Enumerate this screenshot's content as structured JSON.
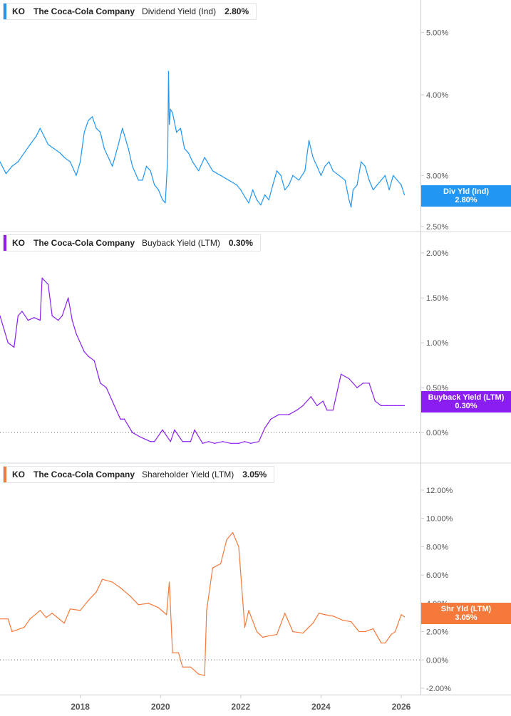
{
  "chart_data": [
    {
      "type": "line",
      "ticker": "KO",
      "company": "The Coca-Cola Company",
      "metric": "Dividend Yield (Ind)",
      "current_value": "2.80%",
      "badge": [
        "Div Yld (Ind)",
        "2.80%"
      ],
      "color": "#2196f3",
      "scale": "log",
      "ylim": [
        2.5,
        5.2
      ],
      "yticks": [
        {
          "v": 5.0,
          "label": "5.00%"
        },
        {
          "v": 4.0,
          "label": "4.00%"
        },
        {
          "v": 3.0,
          "label": "3.00%"
        },
        {
          "v": 2.5,
          "label": "2.50%"
        }
      ],
      "x": [
        2016.0,
        2016.15,
        2016.3,
        2016.45,
        2016.6,
        2016.75,
        2016.9,
        2017.0,
        2017.1,
        2017.2,
        2017.35,
        2017.5,
        2017.6,
        2017.75,
        2017.9,
        2018.0,
        2018.1,
        2018.2,
        2018.3,
        2018.4,
        2018.5,
        2018.6,
        2018.7,
        2018.8,
        2018.95,
        2019.05,
        2019.2,
        2019.3,
        2019.45,
        2019.55,
        2019.65,
        2019.75,
        2019.85,
        2019.95,
        2020.05,
        2020.12,
        2020.18,
        2020.2,
        2020.22,
        2020.25,
        2020.3,
        2020.4,
        2020.5,
        2020.6,
        2020.7,
        2020.8,
        2020.95,
        2021.1,
        2021.3,
        2021.5,
        2021.7,
        2021.9,
        2022.0,
        2022.1,
        2022.2,
        2022.3,
        2022.4,
        2022.5,
        2022.6,
        2022.7,
        2022.8,
        2022.9,
        2023.0,
        2023.1,
        2023.2,
        2023.3,
        2023.45,
        2023.6,
        2023.7,
        2023.8,
        2023.9,
        2024.0,
        2024.1,
        2024.2,
        2024.3,
        2024.45,
        2024.6,
        2024.7,
        2024.75,
        2024.8,
        2024.9,
        2025.0,
        2025.1,
        2025.2,
        2025.3,
        2025.4,
        2025.5,
        2025.6,
        2025.7,
        2025.8,
        2025.9,
        2026.0,
        2026.08
      ],
      "values": [
        3.15,
        3.02,
        3.1,
        3.15,
        3.25,
        3.35,
        3.45,
        3.55,
        3.45,
        3.35,
        3.3,
        3.25,
        3.2,
        3.15,
        3.0,
        3.15,
        3.5,
        3.65,
        3.7,
        3.55,
        3.5,
        3.3,
        3.2,
        3.1,
        3.35,
        3.55,
        3.3,
        3.1,
        2.95,
        2.95,
        3.1,
        3.05,
        2.9,
        2.85,
        2.75,
        2.72,
        3.2,
        4.35,
        3.6,
        3.8,
        3.75,
        3.5,
        3.55,
        3.3,
        3.25,
        3.15,
        3.05,
        3.2,
        3.05,
        3.0,
        2.95,
        2.9,
        2.85,
        2.78,
        2.72,
        2.85,
        2.75,
        2.7,
        2.8,
        2.75,
        2.9,
        3.05,
        3.0,
        2.85,
        2.9,
        3.0,
        2.95,
        3.05,
        3.4,
        3.2,
        3.1,
        3.0,
        3.1,
        3.15,
        3.05,
        3.0,
        2.95,
        2.75,
        2.68,
        2.85,
        2.9,
        3.15,
        3.1,
        2.95,
        2.85,
        2.9,
        2.95,
        3.0,
        2.85,
        3.0,
        2.95,
        2.9,
        2.8
      ]
    },
    {
      "type": "line",
      "ticker": "KO",
      "company": "The Coca-Cola Company",
      "metric": "Buyback Yield (LTM)",
      "current_value": "0.30%",
      "badge": [
        "Buyback Yield (LTM)",
        "0.30%"
      ],
      "color": "#8a1ef0",
      "scale": "linear",
      "ylim": [
        -0.3,
        2.0
      ],
      "yticks": [
        {
          "v": 2.0,
          "label": "2.00%"
        },
        {
          "v": 1.5,
          "label": "1.50%"
        },
        {
          "v": 1.0,
          "label": "1.00%"
        },
        {
          "v": 0.5,
          "label": "0.50%"
        },
        {
          "v": 0.0,
          "label": "0.00%"
        }
      ],
      "zero_line": true,
      "x": [
        2016.0,
        2016.1,
        2016.2,
        2016.35,
        2016.45,
        2016.55,
        2016.7,
        2016.85,
        2017.0,
        2017.05,
        2017.2,
        2017.3,
        2017.45,
        2017.55,
        2017.7,
        2017.8,
        2017.9,
        2018.1,
        2018.2,
        2018.35,
        2018.5,
        2018.65,
        2018.85,
        2019.0,
        2019.1,
        2019.3,
        2019.5,
        2019.75,
        2019.85,
        2020.05,
        2020.25,
        2020.35,
        2020.55,
        2020.75,
        2020.85,
        2021.05,
        2021.2,
        2021.35,
        2021.55,
        2021.75,
        2021.95,
        2022.1,
        2022.25,
        2022.45,
        2022.6,
        2022.75,
        2022.95,
        2023.2,
        2023.4,
        2023.55,
        2023.75,
        2023.9,
        2024.05,
        2024.15,
        2024.3,
        2024.5,
        2024.7,
        2024.9,
        2025.05,
        2025.2,
        2025.35,
        2025.5,
        2025.65,
        2025.85,
        2026.0,
        2026.08
      ],
      "values": [
        1.3,
        1.15,
        1.0,
        0.95,
        1.3,
        1.35,
        1.25,
        1.28,
        1.25,
        1.72,
        1.65,
        1.3,
        1.25,
        1.3,
        1.5,
        1.25,
        1.1,
        0.9,
        0.85,
        0.8,
        0.55,
        0.5,
        0.3,
        0.15,
        0.15,
        0.0,
        -0.05,
        -0.1,
        -0.1,
        0.03,
        -0.1,
        0.03,
        -0.1,
        -0.1,
        0.03,
        -0.12,
        -0.1,
        -0.12,
        -0.1,
        -0.12,
        -0.12,
        -0.1,
        -0.12,
        -0.1,
        0.05,
        0.15,
        0.2,
        0.2,
        0.25,
        0.3,
        0.4,
        0.3,
        0.35,
        0.25,
        0.25,
        0.65,
        0.6,
        0.5,
        0.55,
        0.55,
        0.35,
        0.3,
        0.3,
        0.3,
        0.3,
        0.3
      ]
    },
    {
      "type": "line",
      "ticker": "KO",
      "company": "The Coca-Cola Company",
      "metric": "Shareholder Yield (LTM)",
      "current_value": "3.05%",
      "badge": [
        "Shr Yld (LTM)",
        "3.05%"
      ],
      "color": "#f5793a",
      "scale": "linear",
      "ylim": [
        -2.2,
        12.4
      ],
      "yticks": [
        {
          "v": 12.0,
          "label": "12.00%"
        },
        {
          "v": 10.0,
          "label": "10.00%"
        },
        {
          "v": 8.0,
          "label": "8.00%"
        },
        {
          "v": 6.0,
          "label": "6.00%"
        },
        {
          "v": 4.0,
          "label": "4.00%"
        },
        {
          "v": 2.0,
          "label": "2.00%"
        },
        {
          "v": 0.0,
          "label": "0.00%"
        },
        {
          "v": -2.0,
          "label": "-2.00%"
        }
      ],
      "zero_line": true,
      "x": [
        2016.0,
        2016.2,
        2016.3,
        2016.6,
        2016.75,
        2017.0,
        2017.15,
        2017.3,
        2017.6,
        2017.75,
        2018.0,
        2018.2,
        2018.4,
        2018.55,
        2018.8,
        2019.0,
        2019.25,
        2019.45,
        2019.7,
        2019.95,
        2020.15,
        2020.22,
        2020.3,
        2020.45,
        2020.55,
        2020.75,
        2020.95,
        2021.1,
        2021.15,
        2021.3,
        2021.5,
        2021.65,
        2021.8,
        2021.95,
        2022.1,
        2022.2,
        2022.4,
        2022.55,
        2022.7,
        2022.9,
        2023.1,
        2023.3,
        2023.55,
        2023.8,
        2023.95,
        2024.1,
        2024.3,
        2024.55,
        2024.75,
        2024.95,
        2025.1,
        2025.3,
        2025.5,
        2025.6,
        2025.75,
        2025.85,
        2026.0,
        2026.08
      ],
      "values": [
        2.9,
        2.9,
        2.0,
        2.3,
        2.9,
        3.5,
        3.0,
        3.3,
        2.6,
        3.6,
        3.5,
        4.2,
        4.8,
        5.7,
        5.5,
        5.1,
        4.5,
        3.9,
        4.0,
        3.7,
        3.2,
        5.5,
        0.5,
        0.5,
        -0.5,
        -0.5,
        -1.0,
        -1.1,
        3.5,
        6.5,
        6.8,
        8.5,
        9.0,
        8.0,
        2.3,
        3.5,
        2.0,
        1.6,
        1.7,
        1.8,
        3.3,
        2.0,
        1.9,
        2.6,
        3.3,
        3.2,
        3.1,
        2.8,
        2.7,
        2.0,
        2.0,
        2.2,
        1.2,
        1.2,
        1.8,
        2.0,
        3.2,
        3.05
      ]
    }
  ],
  "x_axis": {
    "range": [
      2016.0,
      2026.48
    ],
    "ticks": [
      {
        "v": 2018,
        "label": "2018"
      },
      {
        "v": 2020,
        "label": "2020"
      },
      {
        "v": 2022,
        "label": "2022"
      },
      {
        "v": 2024,
        "label": "2024"
      },
      {
        "v": 2026,
        "label": "2026"
      }
    ]
  }
}
